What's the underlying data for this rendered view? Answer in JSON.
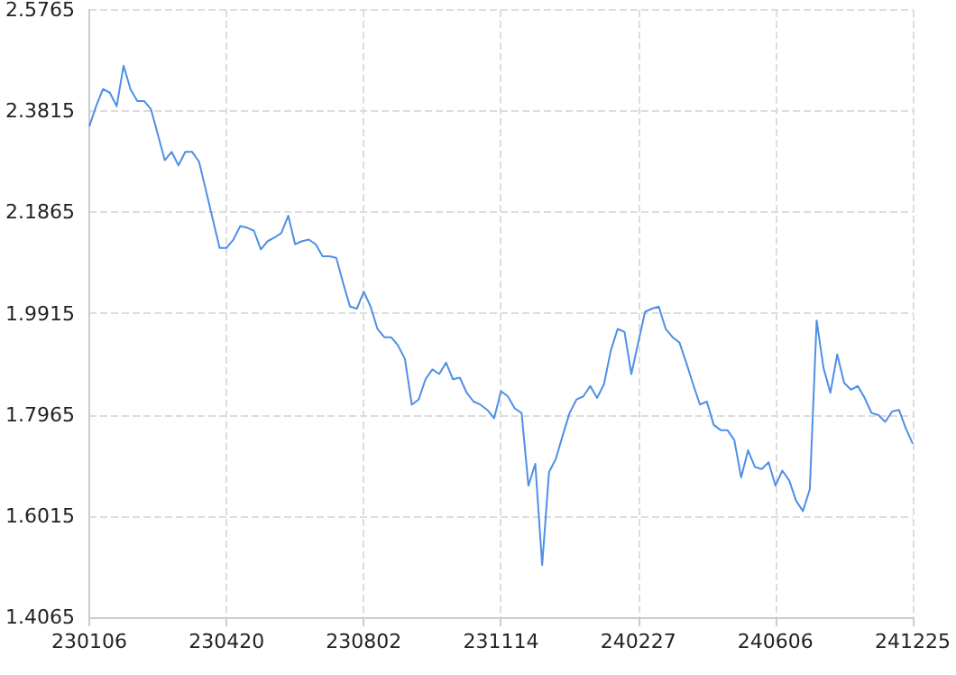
{
  "chart_data": {
    "type": "line",
    "categories": [
      "230106",
      null,
      null,
      null,
      null,
      null,
      null,
      null,
      null,
      null,
      null,
      null,
      null,
      null,
      null,
      null,
      null,
      null,
      null,
      null,
      "230420",
      null,
      null,
      null,
      null,
      null,
      null,
      null,
      null,
      null,
      null,
      null,
      null,
      null,
      null,
      null,
      null,
      null,
      null,
      null,
      "230802",
      null,
      null,
      null,
      null,
      null,
      null,
      null,
      null,
      null,
      null,
      null,
      null,
      null,
      null,
      null,
      null,
      null,
      null,
      null,
      "231114",
      null,
      null,
      null,
      null,
      null,
      null,
      null,
      null,
      null,
      null,
      null,
      null,
      null,
      null,
      null,
      null,
      null,
      null,
      null,
      "240227",
      null,
      null,
      null,
      null,
      null,
      null,
      null,
      null,
      null,
      null,
      null,
      null,
      null,
      null,
      null,
      null,
      null,
      null,
      null,
      "240606",
      null,
      null,
      null,
      null,
      null,
      null,
      null,
      null,
      null,
      null,
      null,
      null,
      null,
      null,
      null,
      null,
      null,
      null,
      null,
      "241225"
    ],
    "series": [
      {
        "color": "#4f8fe6",
        "values": [
          2.352,
          2.391,
          2.424,
          2.417,
          2.391,
          2.469,
          2.424,
          2.401,
          2.401,
          2.385,
          2.336,
          2.287,
          2.303,
          2.277,
          2.303,
          2.303,
          2.284,
          2.229,
          2.173,
          2.118,
          2.118,
          2.134,
          2.16,
          2.157,
          2.151,
          2.115,
          2.131,
          2.138,
          2.147,
          2.18,
          2.125,
          2.131,
          2.134,
          2.125,
          2.102,
          2.102,
          2.099,
          2.05,
          2.005,
          2.001,
          2.034,
          2.005,
          1.962,
          1.946,
          1.946,
          1.93,
          1.904,
          1.816,
          1.826,
          1.865,
          1.884,
          1.875,
          1.897,
          1.865,
          1.868,
          1.839,
          1.822,
          1.816,
          1.806,
          1.79,
          1.842,
          1.832,
          1.809,
          1.8,
          1.66,
          1.702,
          1.507,
          1.686,
          1.712,
          1.757,
          1.8,
          1.826,
          1.832,
          1.852,
          1.829,
          1.855,
          1.92,
          1.962,
          1.956,
          1.875,
          1.936,
          1.995,
          2.001,
          2.005,
          1.962,
          1.946,
          1.936,
          1.897,
          1.855,
          1.816,
          1.822,
          1.777,
          1.767,
          1.767,
          1.748,
          1.676,
          1.728,
          1.696,
          1.692,
          1.705,
          1.66,
          1.689,
          1.67,
          1.631,
          1.611,
          1.653,
          1.978,
          1.887,
          1.839,
          1.913,
          1.858,
          1.845,
          1.852,
          1.829,
          1.8,
          1.796,
          1.783,
          1.803,
          1.806,
          1.77,
          1.741
        ]
      }
    ],
    "ylim": [
      1.4065,
      2.5765
    ],
    "yticks": [
      1.4065,
      1.6015,
      1.7965,
      1.9915,
      2.1865,
      2.3815,
      2.5765
    ],
    "grid": true,
    "marker": "none",
    "line_style": "solid"
  }
}
